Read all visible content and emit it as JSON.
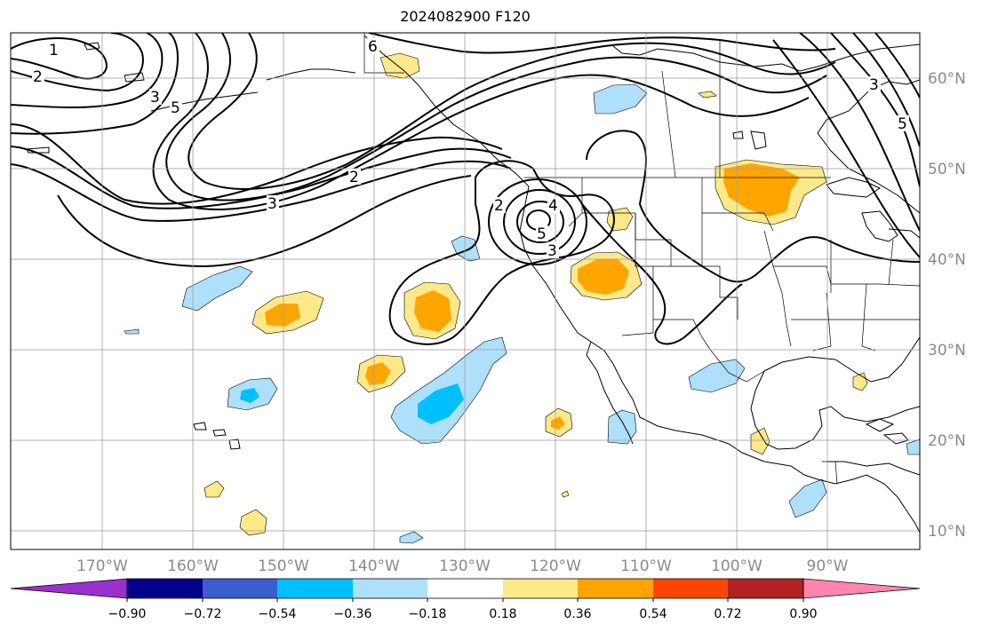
{
  "title": "2024082900 F120",
  "map": {
    "lon_ticks": [
      "170°W",
      "160°W",
      "150°W",
      "140°W",
      "130°W",
      "120°W",
      "110°W",
      "100°W",
      "90°W"
    ],
    "lat_ticks": [
      "60°N",
      "50°N",
      "40°N",
      "30°N",
      "20°N",
      "10°N"
    ],
    "contour_labels": [
      "1",
      "2",
      "3",
      "5",
      "6",
      "2",
      "3",
      "2",
      "4",
      "5",
      "3",
      "3",
      "5"
    ]
  },
  "colorbar": {
    "tick_labels": [
      "−0.90",
      "−0.72",
      "−0.54",
      "−0.36",
      "−0.18",
      "0.18",
      "0.36",
      "0.54",
      "0.72",
      "0.90"
    ],
    "colors": [
      "#9b30d0",
      "#00008b",
      "#3a5fcd",
      "#00bfff",
      "#aee0fb",
      "#ffffff",
      "#fde98a",
      "#ffa500",
      "#ff4500",
      "#b22222",
      "#ff85b0"
    ]
  }
}
